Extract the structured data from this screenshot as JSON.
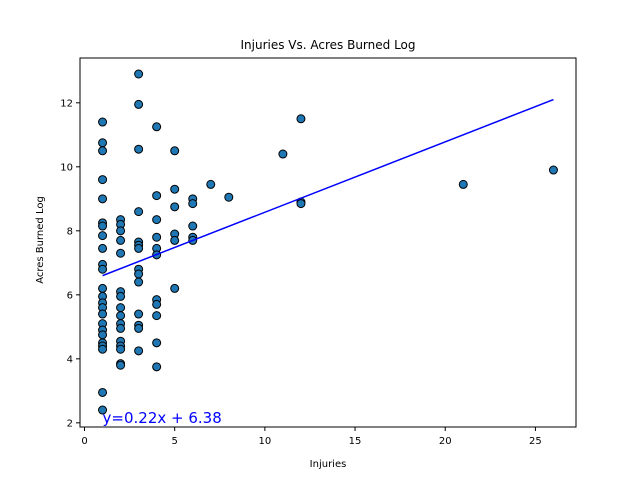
{
  "chart_data": {
    "type": "scatter",
    "title": "Injuries Vs. Acres Burned Log",
    "xlabel": "Injuries",
    "ylabel": "Acres Burned Log",
    "xlim": [
      -0.25,
      27.25
    ],
    "ylim": [
      1.87,
      13.4
    ],
    "xticks": [
      0,
      5,
      10,
      15,
      20,
      25
    ],
    "yticks": [
      2,
      4,
      6,
      8,
      10,
      12
    ],
    "grid": false,
    "legend": "none",
    "colors": {
      "marker_fill": "#1f77b4",
      "marker_edge": "#000000",
      "regression_line": "#0000ff",
      "annotation_text": "#0000ff"
    },
    "regression": {
      "slope": 0.22,
      "intercept": 6.38,
      "x_range": [
        1,
        26
      ],
      "equation_label": "y=0.22x + 6.38",
      "label_position": [
        1,
        2.0
      ]
    },
    "points": [
      [
        1,
        11.4
      ],
      [
        1,
        10.75
      ],
      [
        1,
        10.5
      ],
      [
        1,
        9.6
      ],
      [
        1,
        9.0
      ],
      [
        1,
        8.25
      ],
      [
        1,
        8.15
      ],
      [
        1,
        7.85
      ],
      [
        1,
        7.45
      ],
      [
        1,
        6.95
      ],
      [
        1,
        6.8
      ],
      [
        1,
        6.2
      ],
      [
        1,
        5.95
      ],
      [
        1,
        5.75
      ],
      [
        1,
        5.6
      ],
      [
        1,
        5.4
      ],
      [
        1,
        5.1
      ],
      [
        1,
        4.9
      ],
      [
        1,
        4.75
      ],
      [
        1,
        4.5
      ],
      [
        1,
        4.4
      ],
      [
        1,
        4.3
      ],
      [
        1,
        2.95
      ],
      [
        1,
        2.4
      ],
      [
        2,
        8.35
      ],
      [
        2,
        8.2
      ],
      [
        2,
        8.0
      ],
      [
        2,
        7.7
      ],
      [
        2,
        7.3
      ],
      [
        2,
        6.1
      ],
      [
        2,
        5.95
      ],
      [
        2,
        5.6
      ],
      [
        2,
        5.35
      ],
      [
        2,
        5.1
      ],
      [
        2,
        4.95
      ],
      [
        2,
        4.55
      ],
      [
        2,
        4.4
      ],
      [
        2,
        4.3
      ],
      [
        2,
        3.85
      ],
      [
        2,
        3.8
      ],
      [
        3,
        12.9
      ],
      [
        3,
        11.95
      ],
      [
        3,
        10.55
      ],
      [
        3,
        8.6
      ],
      [
        3,
        7.65
      ],
      [
        3,
        7.55
      ],
      [
        3,
        7.45
      ],
      [
        3,
        6.8
      ],
      [
        3,
        6.65
      ],
      [
        3,
        6.4
      ],
      [
        3,
        5.4
      ],
      [
        3,
        5.05
      ],
      [
        3,
        4.95
      ],
      [
        3,
        4.25
      ],
      [
        4,
        11.25
      ],
      [
        4,
        9.1
      ],
      [
        4,
        8.35
      ],
      [
        4,
        7.8
      ],
      [
        4,
        7.45
      ],
      [
        4,
        7.25
      ],
      [
        4,
        5.85
      ],
      [
        4,
        5.7
      ],
      [
        4,
        5.35
      ],
      [
        4,
        4.5
      ],
      [
        4,
        3.75
      ],
      [
        5,
        10.5
      ],
      [
        5,
        9.3
      ],
      [
        5,
        8.75
      ],
      [
        5,
        7.9
      ],
      [
        5,
        7.7
      ],
      [
        5,
        6.2
      ],
      [
        6,
        9.0
      ],
      [
        6,
        8.85
      ],
      [
        6,
        8.15
      ],
      [
        6,
        7.8
      ],
      [
        6,
        7.7
      ],
      [
        7,
        9.45
      ],
      [
        8,
        9.05
      ],
      [
        11,
        10.4
      ],
      [
        12,
        11.5
      ],
      [
        12,
        8.9
      ],
      [
        12,
        8.85
      ],
      [
        21,
        9.45
      ],
      [
        26,
        9.9
      ]
    ]
  }
}
